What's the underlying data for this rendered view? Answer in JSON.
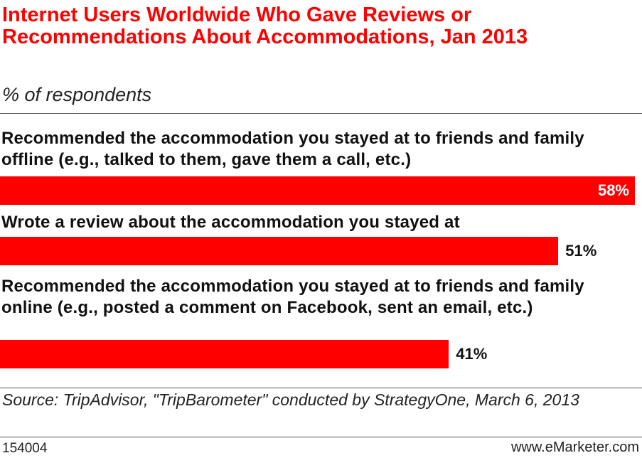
{
  "chart_data": {
    "type": "bar",
    "orientation": "horizontal",
    "title": "Internet Users Worldwide Who Gave Reviews or Recommendations About Accommodations, Jan 2013",
    "subtitle": "% of respondents",
    "categories": [
      "Recommended the accommodation you stayed at to friends and family offline (e.g., talked to them, gave them a call, etc.)",
      "Wrote a review about the accommodation you stayed at",
      "Recommended the accommodation you stayed at to friends and family online (e.g., posted a comment on Facebook, sent an email, etc.)"
    ],
    "values": [
      58,
      51,
      41
    ],
    "value_labels": [
      "58%",
      "51%",
      "41%"
    ],
    "color": "#ff0000",
    "source": "Source: TripAdvisor, \"TripBarometer\" conducted by StrategyOne, March 6, 2013",
    "chart_id": "154004",
    "brand": "www.eMarketer.com"
  }
}
